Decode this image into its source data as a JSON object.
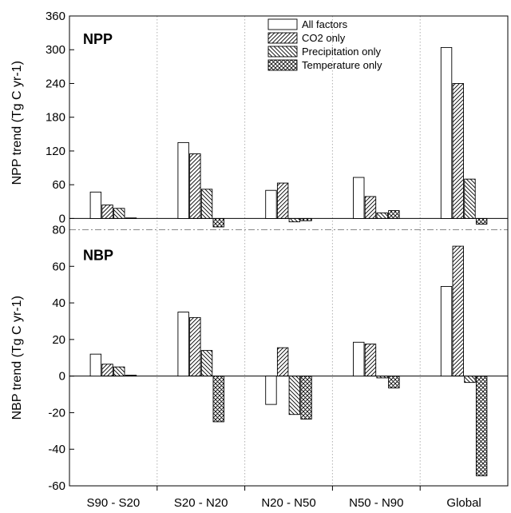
{
  "chart_data": {
    "type": "bar",
    "categories": [
      "S90 - S20",
      "S20 - N20",
      "N20 - N50",
      "N50 - N90",
      "Global"
    ],
    "legend": [
      {
        "name": "All factors",
        "pattern": "none"
      },
      {
        "name": "CO2 only",
        "pattern": "diag-right"
      },
      {
        "name": "Precipitation only",
        "pattern": "diag-left"
      },
      {
        "name": "Temperature only",
        "pattern": "crosshatch"
      }
    ],
    "legend_position": "top-right",
    "grid": false,
    "panels": [
      {
        "title": "NPP",
        "ylabel": "NPP trend (Tg C yr-1)",
        "ylim": [
          -20,
          360
        ],
        "yticks": [
          0,
          60,
          120,
          180,
          240,
          300,
          360
        ],
        "series": [
          {
            "name": "All factors",
            "values": [
              47,
              135,
              50,
              73,
              304
            ]
          },
          {
            "name": "CO2 only",
            "values": [
              24,
              115,
              63,
              39,
              240
            ]
          },
          {
            "name": "Precipitation only",
            "values": [
              18,
              52,
              -6,
              10,
              70
            ]
          },
          {
            "name": "Temperature only",
            "values": [
              1,
              -15,
              -4,
              14,
              -10
            ]
          }
        ]
      },
      {
        "title": "NBP",
        "ylabel": "NBP trend (Tg C yr-1)",
        "ylim": [
          -60,
          80
        ],
        "yticks": [
          -60,
          -40,
          -20,
          0,
          20,
          40,
          60,
          80
        ],
        "series": [
          {
            "name": "All factors",
            "values": [
              12,
              35,
              -15.5,
              18.5,
              49
            ]
          },
          {
            "name": "CO2 only",
            "values": [
              6.5,
              32,
              15.5,
              17.5,
              71
            ]
          },
          {
            "name": "Precipitation only",
            "values": [
              5,
              14,
              -21,
              -1,
              -3.5
            ]
          },
          {
            "name": "Temperature only",
            "values": [
              0.5,
              -25,
              -23.5,
              -6.5,
              -54.5
            ]
          }
        ]
      }
    ]
  }
}
